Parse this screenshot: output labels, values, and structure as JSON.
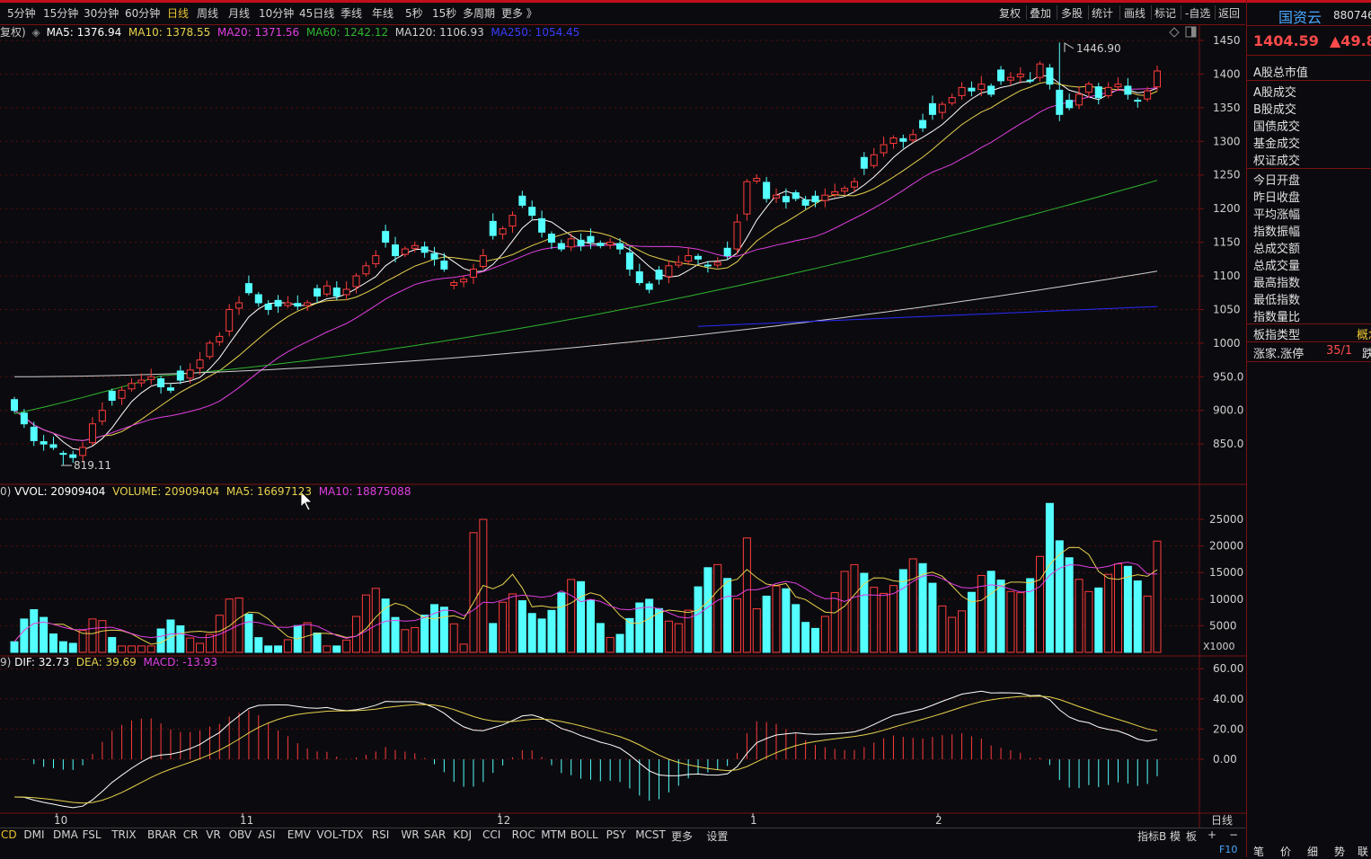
{
  "toolbar": {
    "timeframes": [
      "5分钟",
      "15分钟",
      "30分钟",
      "60分钟",
      "日线",
      "周线",
      "月线",
      "10分钟",
      "45日线",
      "季线",
      "年线",
      "5秒",
      "15秒",
      "多周期",
      "更多 》"
    ],
    "active": "日线",
    "right_buttons": [
      "复权",
      "叠加",
      "多股",
      "统计",
      "画线",
      "标记",
      "-自选",
      "返回"
    ]
  },
  "stock": {
    "name": "国资云",
    "code": "880746",
    "price": "1404.59",
    "change": "▲49.8"
  },
  "side_panel": {
    "items": [
      "A股总市值",
      "A股成交",
      "B股成交",
      "国债成交",
      "基金成交",
      "权证成交",
      "今日开盘",
      "昨日收盘",
      "平均涨幅",
      "指数振幅",
      "总成交额",
      "总成交量",
      "最高指数",
      "最低指数",
      "指数量比",
      "板指类型",
      "涨家.涨停"
    ],
    "board_type_value": "概念",
    "rise_limit_value": "35/1",
    "rise_limit_extra": "跌"
  },
  "main_chart": {
    "legend_prefix": "复权)",
    "ma5": "MA5: 1376.94",
    "ma10": "MA10: 1378.55",
    "ma20": "MA20: 1371.56",
    "ma60": "MA60: 1242.12",
    "ma120": "MA120: 1106.93",
    "ma250": "MA250: 1054.45",
    "high_label": "1446.90",
    "low_label": "819.11",
    "y_ticks": [
      "1450",
      "1400",
      "1350",
      "1300",
      "1250",
      "1200",
      "1150",
      "1100",
      "1050",
      "1000",
      "950.0",
      "900.0",
      "850.0"
    ]
  },
  "volume_chart": {
    "legend_prefix": "0)",
    "vvol": "VVOL: 20909404",
    "volume": "VOLUME: 20909404",
    "ma5": "MA5: 16697123",
    "ma10": "MA10: 18875088",
    "y_ticks": [
      "25000",
      "20000",
      "15000",
      "10000",
      "5000"
    ],
    "unit": "X1000"
  },
  "macd_chart": {
    "legend_prefix": "9)",
    "dif": "DIF: 32.73",
    "dea": "DEA: 39.69",
    "macd": "MACD: -13.93",
    "y_ticks": [
      "60.00",
      "40.00",
      "20.00",
      "0.00"
    ]
  },
  "x_axis": {
    "labels": [
      "10",
      "11",
      "12",
      "1",
      "2"
    ],
    "period": "日线"
  },
  "indicators": [
    "CD",
    "DMI",
    "DMA",
    "FSL",
    "TRIX",
    "BRAR",
    "CR",
    "VR",
    "OBV",
    "ASI",
    "EMV",
    "VOL-TDX",
    "RSI",
    "WR",
    "SAR",
    "KDJ",
    "CCI",
    "ROC",
    "MTM",
    "BOLL",
    "PSY",
    "MCST",
    "更多",
    "设置"
  ],
  "bottom_right": [
    "指标B",
    "模",
    "板",
    "+",
    "−"
  ],
  "status_tabs": [
    "F10",
    "笔",
    "价",
    "细",
    "势",
    "联"
  ],
  "colors": {
    "up": "#ff3b3b",
    "down": "#54ffff",
    "ma5": "#ffffff",
    "ma10": "#e8d24c",
    "ma20": "#e23ee2",
    "ma60": "#2fb52f",
    "ma120": "#d0d0d0",
    "ma250": "#2a2aff",
    "accent": "#e8c22f",
    "grid": "#5a0f0f"
  }
}
